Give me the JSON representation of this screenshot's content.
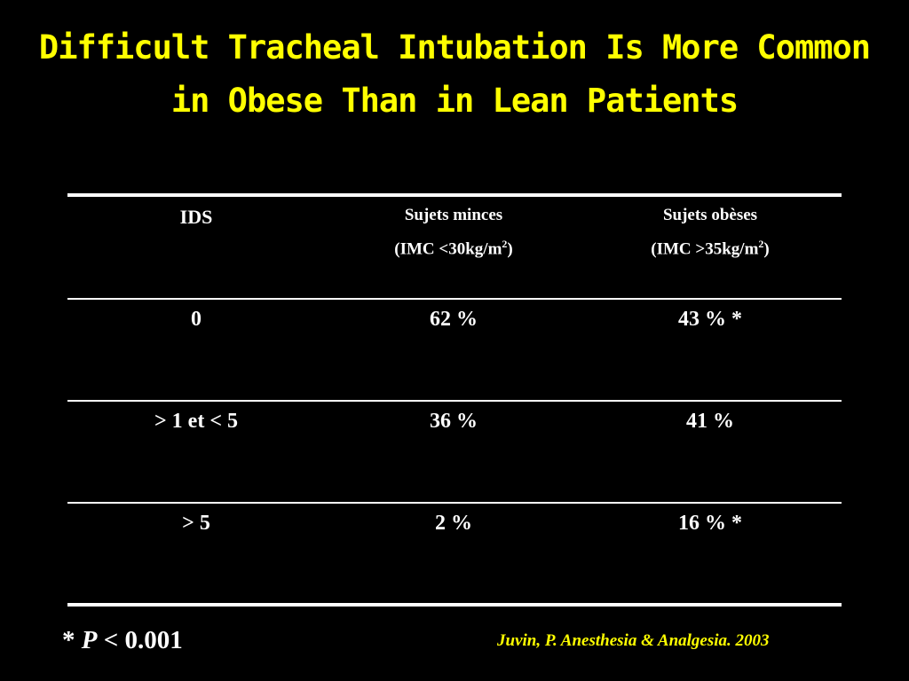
{
  "title": "Difficult Tracheal Intubation Is More Common in Obese Than in Lean Patients",
  "table": {
    "headers": [
      {
        "label": "IDS",
        "sub": ""
      },
      {
        "label": "Sujets minces",
        "sub_prefix": "(IMC <30kg/m",
        "sub_sup": "2",
        "sub_suffix": ")"
      },
      {
        "label": "Sujets obèses",
        "sub_prefix": "(IMC >35kg/m",
        "sub_sup": "2",
        "sub_suffix": ")"
      }
    ],
    "rows": [
      {
        "ids": "0",
        "minces": "62 %",
        "obeses": "43 % *"
      },
      {
        "ids": "> 1 et < 5",
        "minces": "36 %",
        "obeses": "41 %"
      },
      {
        "ids": "> 5",
        "minces": "2 %",
        "obeses": "16 % *"
      }
    ]
  },
  "footnote": {
    "star": "* ",
    "p_symbol": "P",
    "rest": " < 0.001"
  },
  "citation": "Juvin, P. Anesthesia & Analgesia. 2003",
  "colors": {
    "background": "#000000",
    "title": "#ffff00",
    "text": "#ffffff",
    "citation": "#ffff00"
  }
}
